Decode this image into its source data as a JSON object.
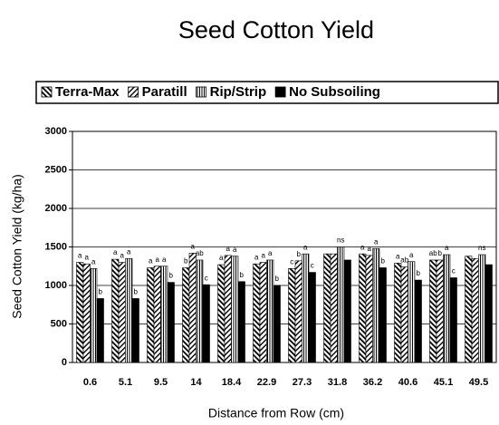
{
  "chart_data": {
    "type": "bar",
    "title": "Seed Cotton Yield",
    "x_label": "Distance from Row (cm)",
    "y_label": "Seed Cotton Yield (kg/ha)",
    "categories": [
      "0.6",
      "5.1",
      "9.5",
      "14",
      "18.4",
      "22.9",
      "27.3",
      "31.8",
      "36.2",
      "40.6",
      "45.1",
      "49.5"
    ],
    "series": [
      {
        "name": "Terra-Max",
        "color": "#000000",
        "pattern": "backslash",
        "values": [
          1300,
          1340,
          1230,
          1230,
          1270,
          1280,
          1220,
          1410,
          1410,
          1290,
          1330,
          1380
        ],
        "letters": [
          "a",
          "a",
          "a",
          "b",
          "a",
          "a",
          "c",
          null,
          "a",
          "a",
          "ab",
          null
        ]
      },
      {
        "name": "Paratill",
        "color": "#000000",
        "pattern": "slash",
        "values": [
          1280,
          1300,
          1250,
          1420,
          1390,
          1300,
          1320,
          1410,
          1390,
          1240,
          1330,
          1350
        ],
        "letters": [
          "a",
          "a",
          "a",
          "a",
          "a",
          "a",
          "b",
          null,
          "a",
          "ab",
          "b",
          null
        ]
      },
      {
        "name": "Rip/Strip",
        "color": "#000000",
        "pattern": "vertical",
        "values": [
          1220,
          1350,
          1250,
          1330,
          1380,
          1330,
          1410,
          1500,
          1480,
          1310,
          1400,
          1400
        ],
        "letters": [
          "a",
          "a",
          "a",
          "ab",
          "a",
          "a",
          "a",
          "ns",
          "a",
          "a",
          "a",
          "ns"
        ]
      },
      {
        "name": "No Subsoiling",
        "color": "#000000",
        "pattern": "solid",
        "values": [
          830,
          830,
          1040,
          1010,
          1050,
          1000,
          1170,
          1330,
          1230,
          1070,
          1100,
          1270
        ],
        "letters": [
          "b",
          "b",
          "b",
          "c",
          "b",
          "b",
          "c",
          null,
          "b",
          "b",
          "c",
          null
        ]
      }
    ],
    "ylim": [
      0,
      3000
    ],
    "yticks": [
      0,
      500,
      1000,
      1500,
      2000,
      2500,
      3000
    ],
    "grid": true,
    "legend": "top"
  }
}
